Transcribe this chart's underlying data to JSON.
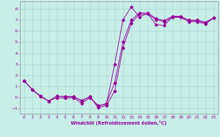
{
  "xlabel": "Windchill (Refroidissement éolien,°C)",
  "bg_color": "#c8eee8",
  "grid_color": "#a8d8d0",
  "line_color": "#990099",
  "spine_color": "#888888",
  "xlim": [
    -0.5,
    23.5
  ],
  "ylim": [
    -1.5,
    8.7
  ],
  "xticks": [
    0,
    1,
    2,
    3,
    4,
    5,
    6,
    7,
    8,
    9,
    10,
    11,
    12,
    13,
    14,
    15,
    16,
    17,
    18,
    19,
    20,
    21,
    22,
    23
  ],
  "yticks": [
    -1,
    0,
    1,
    2,
    3,
    4,
    5,
    6,
    7,
    8
  ],
  "series1_x": [
    0,
    1,
    2,
    3,
    4,
    5,
    6,
    7,
    8,
    9,
    10,
    11,
    12,
    13,
    14,
    15,
    16,
    17,
    18,
    19,
    20,
    21,
    22,
    23
  ],
  "series1_y": [
    1.5,
    0.7,
    0.05,
    -0.35,
    -0.05,
    -0.1,
    -0.05,
    -0.55,
    -0.05,
    -0.75,
    -0.65,
    3.0,
    7.0,
    8.2,
    7.3,
    7.6,
    6.6,
    6.5,
    7.3,
    7.3,
    7.0,
    7.0,
    6.8,
    7.2
  ],
  "series2_x": [
    0,
    1,
    2,
    3,
    4,
    5,
    6,
    7,
    8,
    9,
    10,
    11,
    12,
    13,
    14,
    15,
    16,
    17,
    18,
    19,
    20,
    21,
    22,
    23
  ],
  "series2_y": [
    1.5,
    0.7,
    0.1,
    -0.35,
    0.1,
    0.05,
    0.05,
    -0.35,
    0.05,
    -0.95,
    -0.75,
    0.55,
    4.5,
    6.7,
    7.55,
    7.55,
    7.05,
    6.85,
    7.25,
    7.25,
    6.85,
    6.85,
    6.65,
    7.2
  ],
  "series3_x": [
    0,
    1,
    2,
    3,
    4,
    5,
    6,
    7,
    8,
    9,
    10,
    11,
    12,
    13,
    14,
    15,
    16,
    17,
    18,
    19,
    20,
    21,
    22,
    23
  ],
  "series3_y": [
    1.5,
    0.7,
    0.1,
    -0.35,
    0.1,
    0.05,
    0.05,
    -0.3,
    0.05,
    -0.85,
    -0.55,
    1.3,
    5.0,
    7.0,
    7.65,
    7.65,
    7.15,
    6.95,
    7.35,
    7.35,
    6.95,
    6.95,
    6.75,
    7.2
  ]
}
